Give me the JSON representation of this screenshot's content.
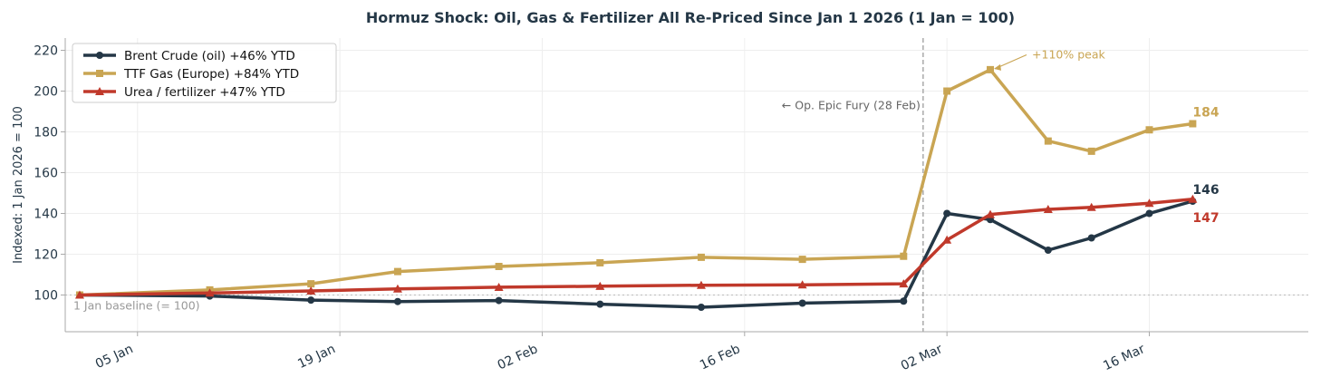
{
  "chart_data": {
    "type": "line",
    "title": "Hormuz Shock: Oil, Gas & Fertilizer All Re-Priced Since Jan 1 2026  (1 Jan = 100)",
    "xlabel": "",
    "ylabel": "Indexed: 1 Jan 2026 = 100",
    "x": [
      "2026-01-01",
      "2026-01-10",
      "2026-01-17",
      "2026-01-23",
      "2026-01-30",
      "2026-02-06",
      "2026-02-13",
      "2026-02-20",
      "2026-02-27",
      "2026-03-02",
      "2026-03-05",
      "2026-03-09",
      "2026-03-12",
      "2026-03-16",
      "2026-03-19"
    ],
    "x_ticks": [
      "2026-01-05",
      "2026-01-19",
      "2026-02-02",
      "2026-02-16",
      "2026-03-02",
      "2026-03-16"
    ],
    "x_tick_labels": [
      "05 Jan",
      "19 Jan",
      "02 Feb",
      "16 Feb",
      "02 Mar",
      "16 Mar"
    ],
    "xlim": [
      "2025-12-31",
      "2026-03-27"
    ],
    "ylim": [
      82,
      226
    ],
    "y_ticks": [
      100,
      120,
      140,
      160,
      180,
      200,
      220
    ],
    "grid": true,
    "legend_position": "top-left",
    "series": [
      {
        "name": "Brent Crude (oil)  +46% YTD",
        "color": "#243746",
        "marker": "circle",
        "values": [
          100,
          99.5,
          97.5,
          96.8,
          97.3,
          95.5,
          94,
          96,
          97,
          140,
          137,
          122,
          128,
          140,
          146
        ]
      },
      {
        "name": "TTF Gas (Europe)  +84% YTD",
        "color": "#c9a553",
        "marker": "square",
        "values": [
          100,
          102.5,
          105.5,
          111.5,
          114,
          115.8,
          118.5,
          117.5,
          119,
          200,
          210.5,
          175.5,
          170.5,
          181,
          184
        ]
      },
      {
        "name": "Urea / fertilizer  +47% YTD",
        "color": "#c0392b",
        "marker": "triangle",
        "values": [
          100,
          101,
          102,
          103,
          103.8,
          104.3,
          104.8,
          105,
          105.5,
          127,
          139.5,
          142,
          143,
          145,
          147
        ]
      }
    ],
    "end_labels": [
      {
        "text": "184",
        "color": "#c9a553",
        "series": 1
      },
      {
        "text": "146",
        "color": "#243746",
        "series": 0
      },
      {
        "text": "147",
        "color": "#c0392b",
        "series": 2
      }
    ],
    "annotations": {
      "event_line_date": "2026-02-28",
      "event_label": "← Op. Epic Fury (28 Feb)",
      "peak_label": "+110% peak",
      "baseline_label": "1 Jan baseline (= 100)",
      "baseline_value": 100
    },
    "colors": {
      "axis": "#aaaaaa",
      "grid": "#eeeeee",
      "event_line": "#aaaaaa",
      "annotation_text": "#666666",
      "baseline_text": "#999999"
    }
  }
}
